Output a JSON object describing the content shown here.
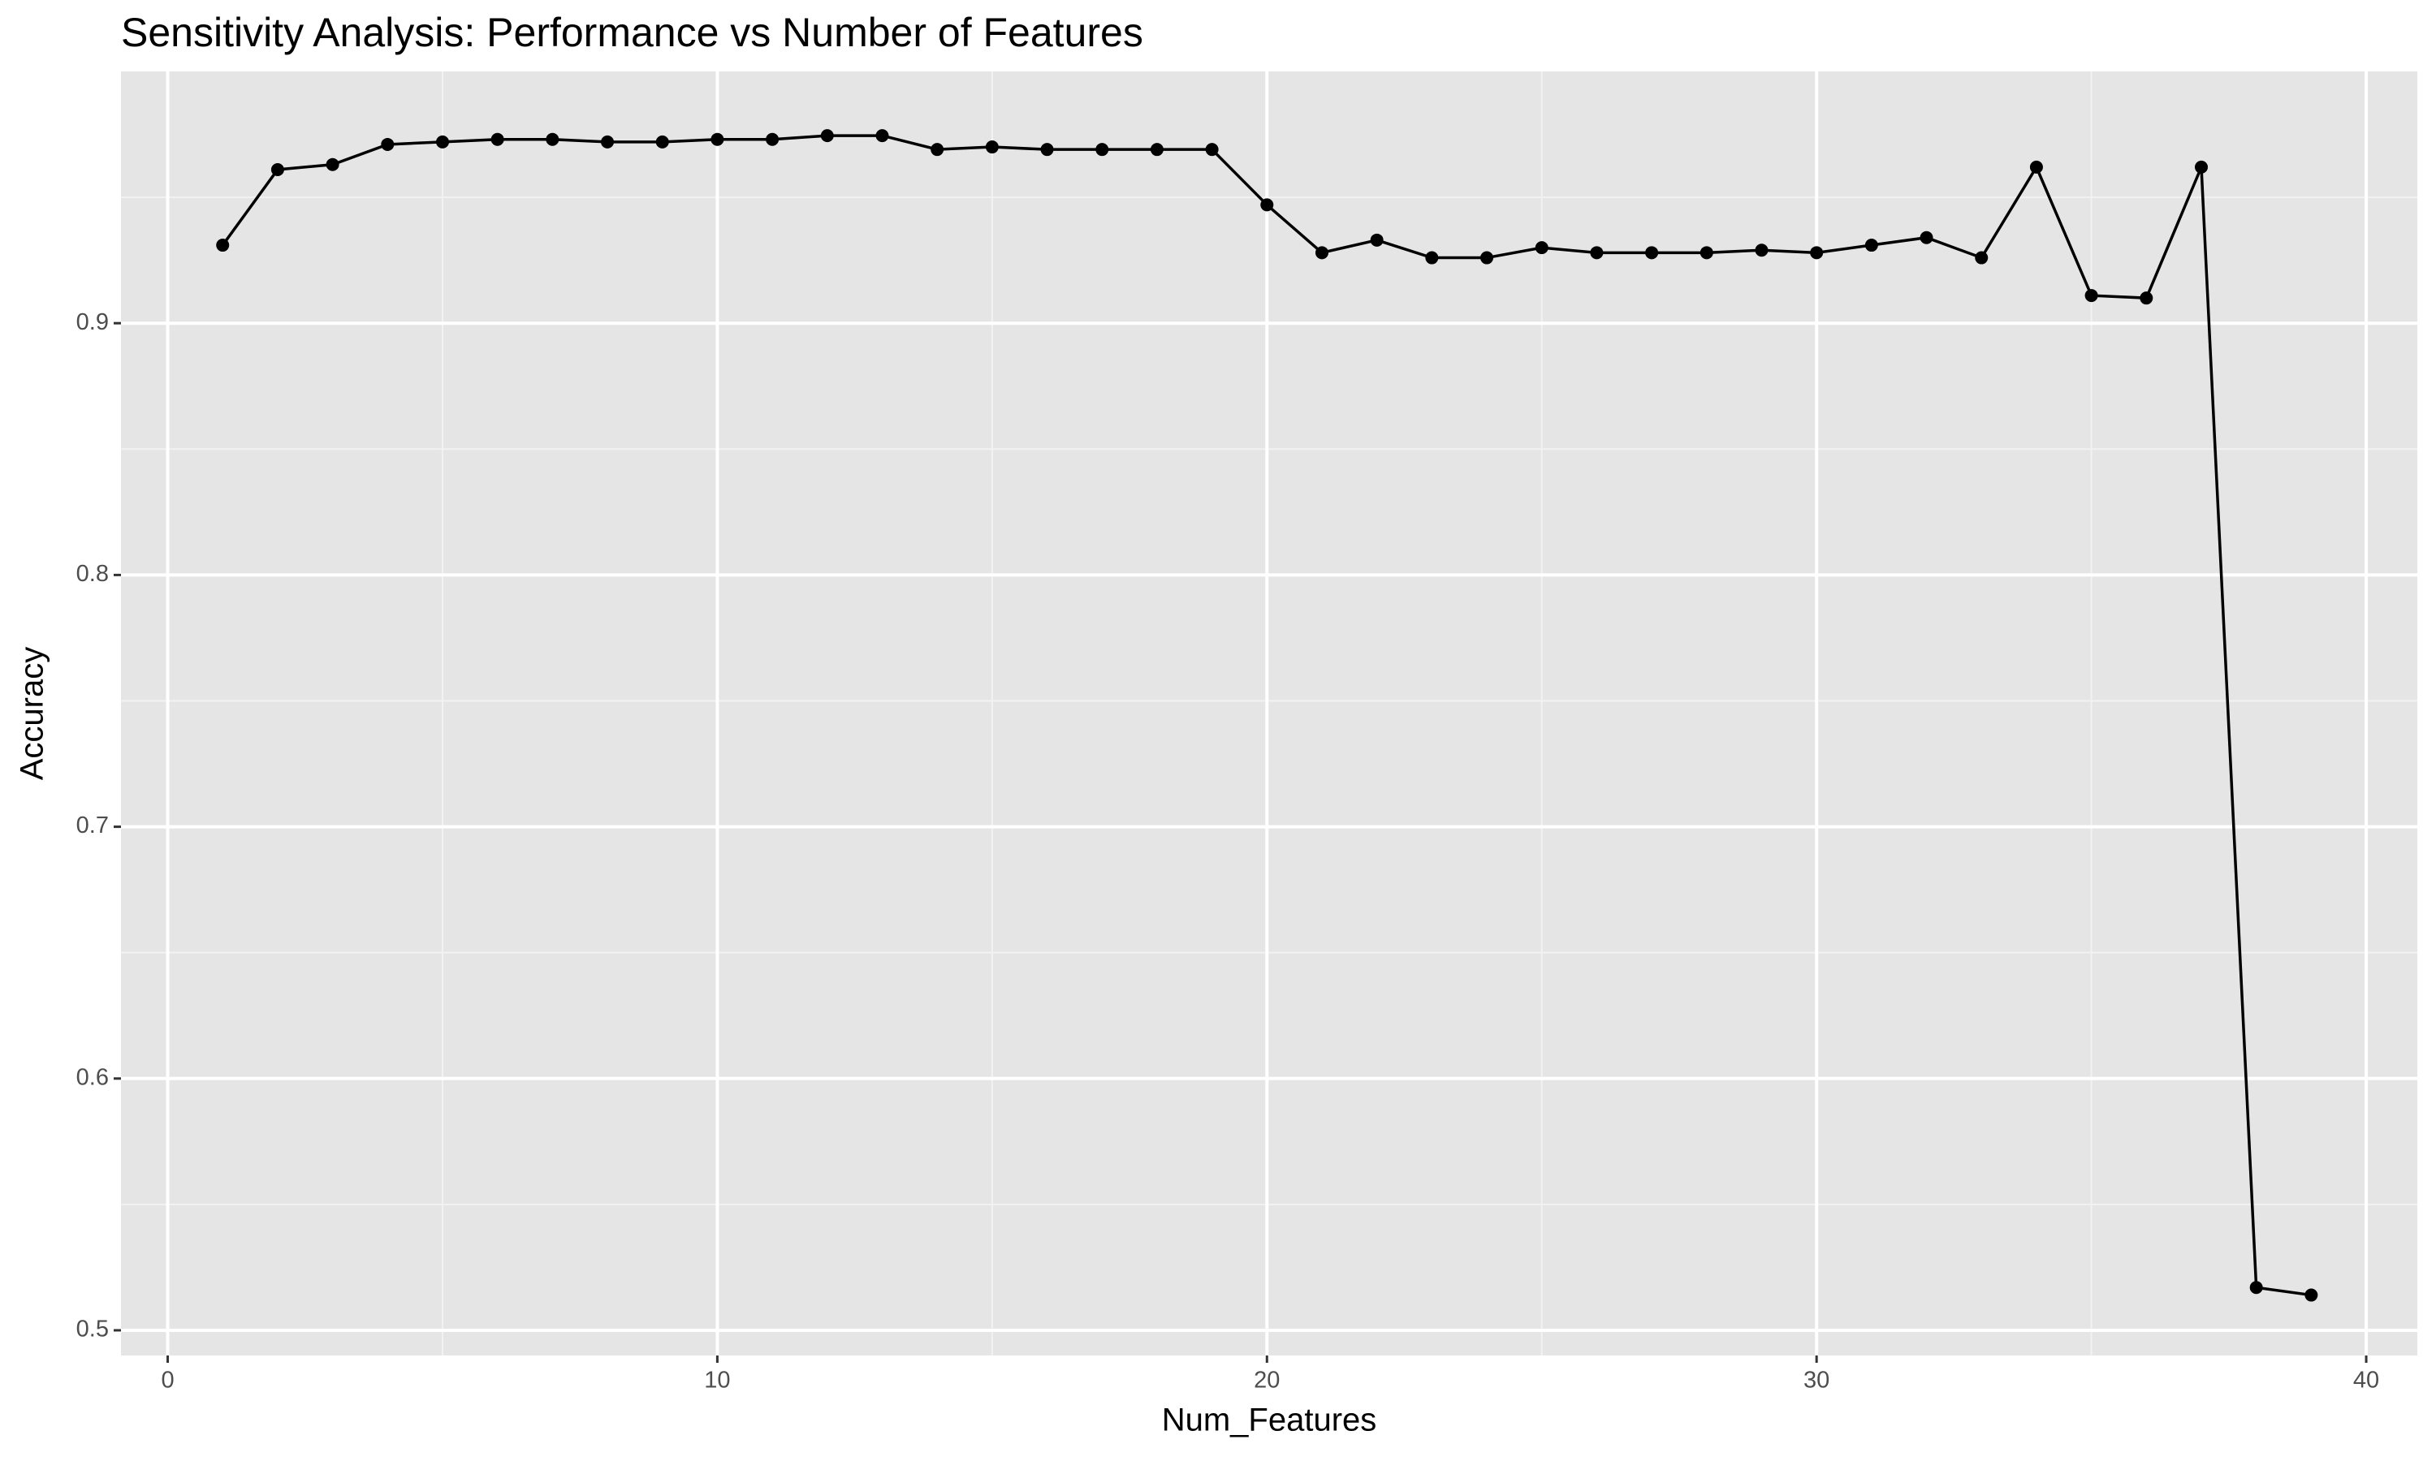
{
  "chart_data": {
    "type": "line",
    "title": "Sensitivity Analysis: Performance vs Number of Features",
    "x_label": "Num_Features",
    "y_label": "Accuracy",
    "x": [
      1,
      2,
      3,
      4,
      5,
      6,
      7,
      8,
      9,
      10,
      11,
      12,
      13,
      14,
      15,
      16,
      17,
      18,
      19,
      20,
      21,
      22,
      23,
      24,
      25,
      26,
      27,
      28,
      29,
      30,
      31,
      32,
      33,
      34,
      35,
      36,
      37,
      38,
      39
    ],
    "series": [
      {
        "name": "Accuracy",
        "color": "#000000",
        "values": [
          0.931,
          0.961,
          0.963,
          0.971,
          0.972,
          0.973,
          0.973,
          0.972,
          0.972,
          0.973,
          0.973,
          0.9745,
          0.9745,
          0.969,
          0.97,
          0.969,
          0.969,
          0.969,
          0.969,
          0.947,
          0.928,
          0.933,
          0.926,
          0.926,
          0.93,
          0.928,
          0.928,
          0.928,
          0.929,
          0.928,
          0.931,
          0.934,
          0.926,
          0.962,
          0.911,
          0.91,
          0.962,
          0.517,
          0.514
        ]
      }
    ],
    "xlim": [
      -0.85,
      40.93
    ],
    "ylim": [
      0.49,
      1.0
    ],
    "xticks": [
      0,
      10,
      20,
      30,
      40
    ],
    "yticks": [
      0.5,
      0.6,
      0.7,
      0.8,
      0.9
    ],
    "grid": true
  }
}
